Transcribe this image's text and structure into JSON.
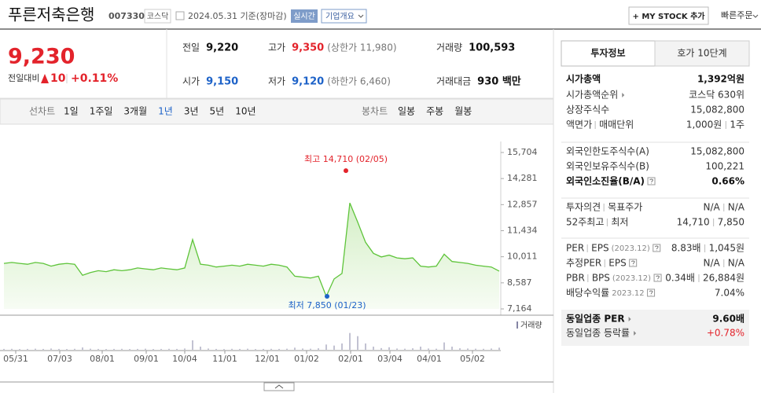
{
  "header": {
    "name": "푸른저축은행",
    "code": "007330",
    "market": "코스닥",
    "date": "2024.05.31 기준(장마감)",
    "realtime": "실시간",
    "company_info": "기업개요",
    "my_stock": "+ MY STOCK 추가",
    "quick_order": "빠른주문"
  },
  "quote": {
    "price": "9,230",
    "change_label": "전일대비",
    "change": "10",
    "change_pct": "+0.11%",
    "color": "#e3232b",
    "stats": [
      {
        "label": "전일",
        "value": "9,220",
        "color": "#111111"
      },
      {
        "label": "고가",
        "value": "9,350",
        "note": "(상한가 11,980)",
        "color": "#e3232b"
      },
      {
        "label": "거래량",
        "value": "100,593",
        "color": "#111111"
      },
      {
        "label": "시가",
        "value": "9,150",
        "color": "#1d62c8"
      },
      {
        "label": "저가",
        "value": "9,120",
        "note": "(하한가 6,460)",
        "color": "#1d62c8"
      },
      {
        "label": "거래대금",
        "value": "930 백만",
        "color": "#111111"
      }
    ]
  },
  "tabs": {
    "line_label": "선차트",
    "periods": [
      "1일",
      "1주일",
      "3개월",
      "1년",
      "3년",
      "5년",
      "10년"
    ],
    "selected": 3,
    "candle_label": "봉차트",
    "candles": [
      "일봉",
      "주봉",
      "월봉"
    ]
  },
  "chart_data": {
    "type": "line",
    "values": [
      9650,
      9700,
      9650,
      9600,
      9700,
      9650,
      9500,
      9600,
      9650,
      9600,
      9000,
      9150,
      9250,
      9200,
      9300,
      9250,
      9300,
      9400,
      9350,
      9300,
      9400,
      9350,
      9300,
      9400,
      10950,
      9600,
      9550,
      9450,
      9500,
      9550,
      9500,
      9600,
      9550,
      9500,
      9600,
      9550,
      9450,
      8950,
      8900,
      8850,
      8950,
      7850,
      8800,
      9100,
      12950,
      11900,
      10800,
      10200,
      10000,
      10100,
      9950,
      9900,
      9950,
      9500,
      9450,
      9500,
      10150,
      9750,
      9700,
      9650,
      9550,
      9500,
      9450,
      9230
    ],
    "color": "#5ec43a",
    "xlim": [
      0,
      63
    ],
    "ylim": [
      7164,
      15704
    ],
    "yticks": [
      {
        "value": 15704,
        "label": "15,704"
      },
      {
        "value": 14281,
        "label": "14,281"
      },
      {
        "value": 12857,
        "label": "12,857"
      },
      {
        "value": 11434,
        "label": "11,434"
      },
      {
        "value": 10011,
        "label": "10,011"
      },
      {
        "value": 8587,
        "label": "8,587"
      },
      {
        "value": 7164,
        "label": "7,164"
      }
    ],
    "xticks": [
      {
        "value": 1.5,
        "label": "05/31"
      },
      {
        "value": 7.1,
        "label": "07/03"
      },
      {
        "value": 12.5,
        "label": "08/01"
      },
      {
        "value": 18.1,
        "label": "09/01"
      },
      {
        "value": 23,
        "label": "10/04"
      },
      {
        "value": 28.1,
        "label": "11/01"
      },
      {
        "value": 33.5,
        "label": "12/01"
      },
      {
        "value": 38.5,
        "label": "01/02"
      },
      {
        "value": 44.1,
        "label": "02/01"
      },
      {
        "value": 49.1,
        "label": "03/04"
      },
      {
        "value": 54.1,
        "label": "04/01"
      },
      {
        "value": 59.6,
        "label": "05/02"
      }
    ],
    "max": {
      "text": "최고 14,710 (02/05)",
      "value": 14710,
      "x": 43.5,
      "color": "#e3232b"
    },
    "min": {
      "text": "최저 7,850 (01/23)",
      "value": 7850,
      "x": 41.1,
      "color": "#1d62c8"
    },
    "volume": {
      "label": "거래량",
      "color": "#8585a5",
      "ylim": [
        0,
        1500000
      ],
      "values": [
        40000,
        45000,
        35000,
        40000,
        50000,
        40000,
        60000,
        40000,
        35000,
        45000,
        110000,
        50000,
        40000,
        35000,
        40000,
        45000,
        35000,
        40000,
        50000,
        35000,
        40000,
        45000,
        40000,
        60000,
        450000,
        150000,
        60000,
        40000,
        35000,
        45000,
        40000,
        50000,
        35000,
        40000,
        45000,
        40000,
        50000,
        100000,
        60000,
        50000,
        70000,
        250000,
        200000,
        300000,
        800000,
        650000,
        300000,
        150000,
        80000,
        120000,
        60000,
        50000,
        70000,
        150000,
        60000,
        50000,
        350000,
        150000,
        70000,
        60000,
        50000,
        45000,
        60000,
        100593
      ]
    }
  },
  "panel": {
    "tabs": [
      "투자정보",
      "호가 10단계"
    ],
    "sections": [
      {
        "rows": [
          {
            "label": [
              "시가총액"
            ],
            "value": [
              "1,392억원"
            ],
            "bold": true
          },
          {
            "label": [
              "시가총액순위"
            ],
            "arrow": true,
            "value": [
              "코스닥 630위"
            ]
          },
          {
            "label": [
              "상장주식수"
            ],
            "value": [
              "15,082,800"
            ]
          },
          {
            "label": [
              "액면가",
              "매매단위"
            ],
            "value": [
              "1,000원",
              "1주"
            ]
          }
        ]
      },
      {
        "rows": [
          {
            "label": [
              "외국인한도주식수(A)"
            ],
            "value": [
              "15,082,800"
            ]
          },
          {
            "label": [
              "외국인보유주식수(B)"
            ],
            "value": [
              "100,221"
            ]
          },
          {
            "label": [
              "외국인소진율(B/A)"
            ],
            "help": true,
            "bold": true,
            "value": [
              "0.66%"
            ]
          }
        ]
      },
      {
        "rows": [
          {
            "label": [
              "투자의견",
              "목표주가"
            ],
            "value": [
              "N/A",
              "N/A"
            ]
          },
          {
            "label": [
              "52주최고",
              "최저"
            ],
            "value": [
              "14,710",
              "7,850"
            ]
          }
        ]
      },
      {
        "rows": [
          {
            "label": [
              "PER",
              "EPS"
            ],
            "note": "(2023.12)",
            "help": true,
            "value": [
              "8.83배",
              "1,045원"
            ]
          },
          {
            "label": [
              "추정PER",
              "EPS"
            ],
            "help": true,
            "value": [
              "N/A",
              "N/A"
            ]
          },
          {
            "label": [
              "PBR",
              "BPS"
            ],
            "note": "(2023.12)",
            "help": true,
            "value": [
              "0.34배",
              "26,884원"
            ]
          },
          {
            "label": [
              "배당수익률"
            ],
            "note": "2023.12",
            "help": true,
            "value": [
              "7.04%"
            ]
          }
        ]
      },
      {
        "shaded": true,
        "rows": [
          {
            "label": [
              "동일업종 PER"
            ],
            "arrow": true,
            "bold": true,
            "value": [
              "9.60배"
            ]
          },
          {
            "label": [
              "동일업종 등락률"
            ],
            "arrow": true,
            "value": [
              "+0.78%"
            ],
            "value_color": "#e3232b"
          }
        ]
      }
    ]
  }
}
